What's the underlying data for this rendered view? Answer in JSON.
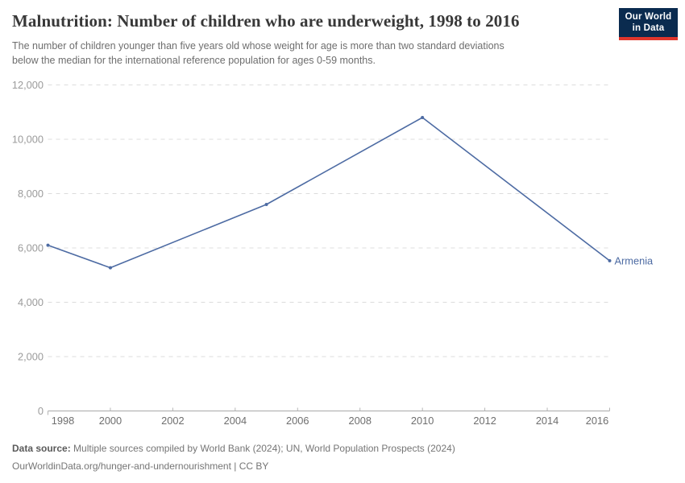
{
  "header": {
    "title": "Malnutrition: Number of children who are underweight, 1998 to 2016",
    "subtitle_lines": [
      "The number of children younger than five years old whose weight for age is more than two standard deviations",
      "below the median for the international reference population for ages 0-59 months."
    ]
  },
  "logo": {
    "line1": "Our World",
    "line2": "in Data",
    "bg_color": "#0A2B4F",
    "accent_color": "#E0362C"
  },
  "chart_data": {
    "type": "line",
    "title": "Malnutrition: Number of children who are underweight, 1998 to 2016",
    "x": [
      1998,
      2000,
      2005,
      2010,
      2016
    ],
    "series": [
      {
        "name": "Armenia",
        "values": [
          6100,
          5270,
          7600,
          10800,
          5530
        ],
        "color": "#4D6BA3"
      }
    ],
    "xlabel": "",
    "ylabel": "",
    "xlim": [
      1998,
      2016
    ],
    "ylim": [
      0,
      12000
    ],
    "xticks": [
      1998,
      2000,
      2002,
      2004,
      2006,
      2008,
      2010,
      2012,
      2014,
      2016
    ],
    "yticks": [
      0,
      2000,
      4000,
      6000,
      8000,
      10000,
      12000
    ],
    "grid": "horizontal-dashed",
    "legend_position": "end-of-line-label"
  },
  "footer": {
    "source_label": "Data source:",
    "source_text": " Multiple sources compiled by World Bank (2024); UN, World Population Prospects (2024)",
    "link_line": "OurWorldinData.org/hunger-and-undernourishment | CC BY"
  }
}
